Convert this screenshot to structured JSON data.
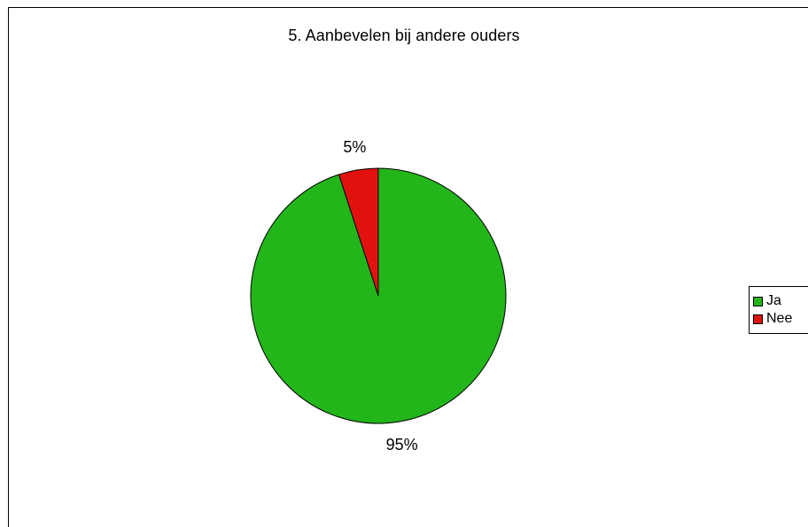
{
  "chart_data": {
    "type": "pie",
    "title": "5. Aanbevelen bij andere ouders",
    "categories": [
      "Ja",
      "Nee"
    ],
    "values": [
      95,
      5
    ],
    "data_labels": [
      "95%",
      "5%"
    ],
    "colors": [
      "#22b61a",
      "#e1120d"
    ],
    "legend_position": "right"
  },
  "legend": {
    "items": [
      {
        "label": "Ja",
        "color": "#22b61a"
      },
      {
        "label": "Nee",
        "color": "#e1120d"
      }
    ]
  }
}
